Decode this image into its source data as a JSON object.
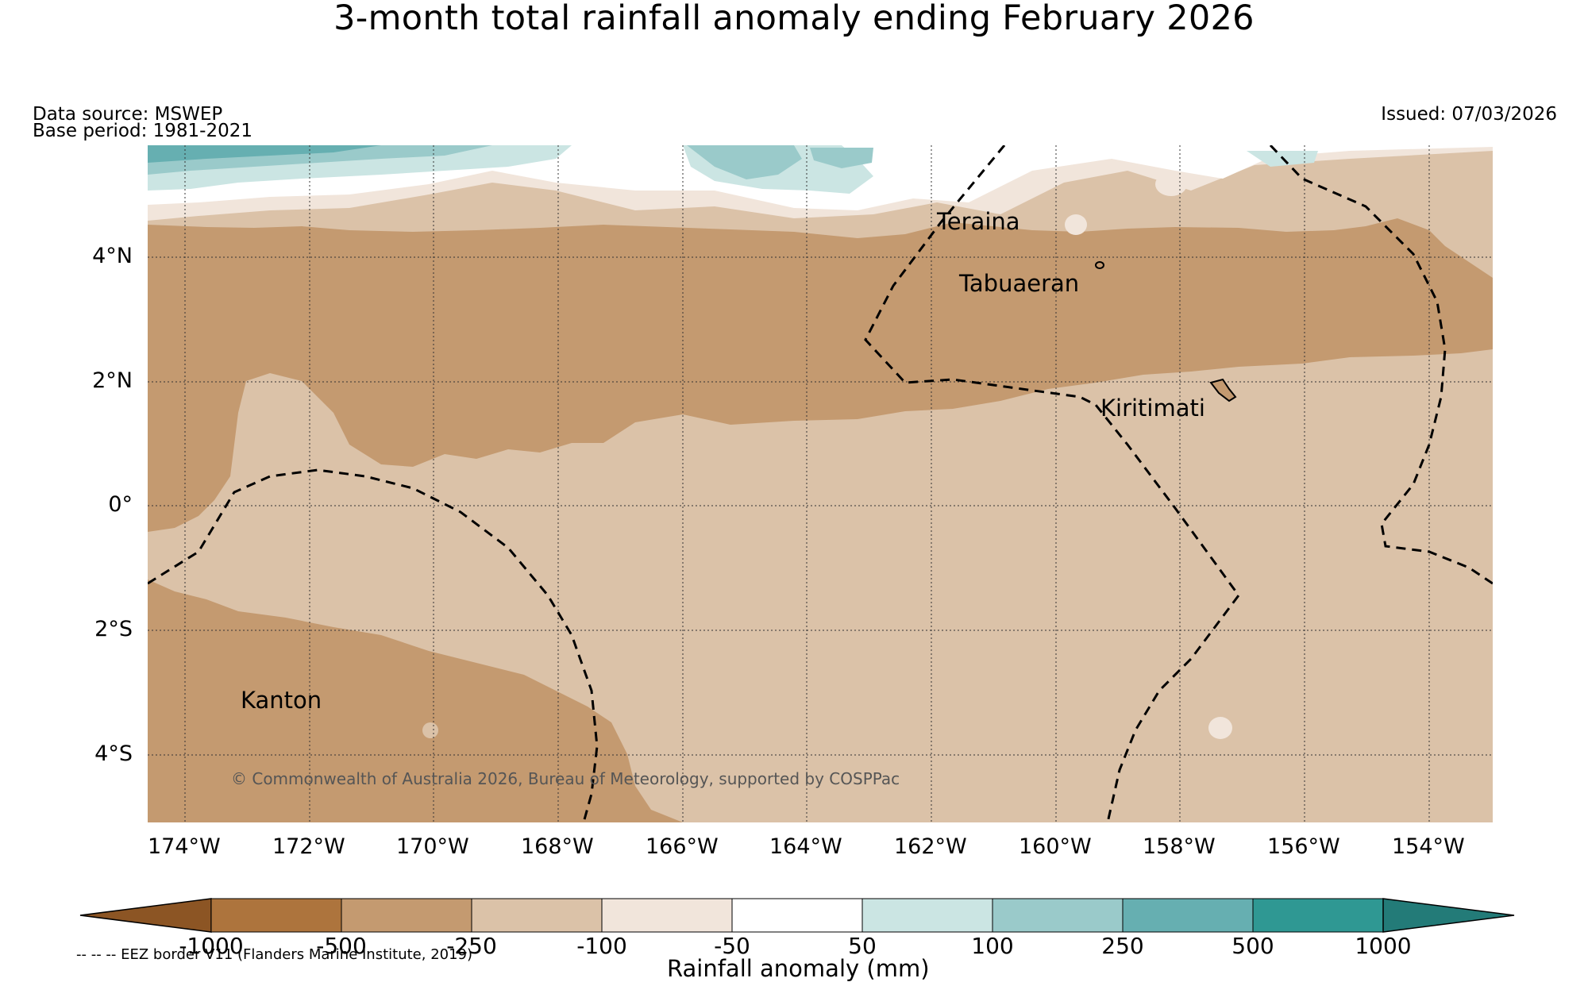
{
  "title": "3-month total rainfall anomaly ending February 2026",
  "data_source": "Data source: MSWEP",
  "base_period": "Base period: 1981-2021",
  "issued": "Issued: 07/03/2026",
  "places": {
    "teraina": "Teraina",
    "tabuaeran": "Tabuaeran",
    "kiritimati": "Kiritimati",
    "kanton": "Kanton"
  },
  "lat_ticks": [
    "4°N",
    "2°N",
    "0°",
    "2°S",
    "4°S"
  ],
  "lon_ticks": [
    "174°W",
    "172°W",
    "170°W",
    "168°W",
    "166°W",
    "164°W",
    "162°W",
    "160°W",
    "158°W",
    "156°W",
    "154°W"
  ],
  "copyright": "© Commonwealth of Australia 2026, Bureau of Meteorology, supported by COSPPac",
  "colorbar": {
    "ticks": [
      "-1000",
      "-500",
      "-250",
      "-100",
      "-50",
      "50",
      "100",
      "250",
      "500",
      "1000"
    ],
    "label": "Rainfall anomaly (mm)",
    "colors": [
      "#8c5524",
      "#ad743d",
      "#c49a70",
      "#dbc2a8",
      "#f1e5db",
      "#ffffff",
      "#cbe5e3",
      "#9acaca",
      "#66afb1",
      "#2f9893",
      "#237b78"
    ]
  },
  "eez_note": "-- -- -- EEZ border V11 (Flanders Marine Institute, 2019)"
}
